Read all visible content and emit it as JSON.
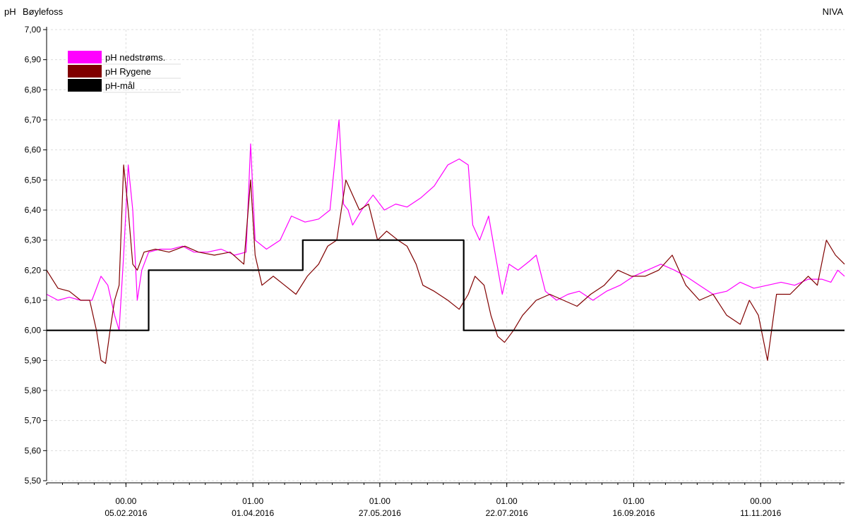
{
  "header": {
    "unit": "pH",
    "station": "Bøylefoss",
    "source": "NIVA"
  },
  "chart_data": {
    "type": "line",
    "ylim": [
      5.5,
      7.0
    ],
    "y_ticks": [
      "7,00",
      "6,90",
      "6,80",
      "6,70",
      "6,60",
      "6,50",
      "6,40",
      "6,30",
      "6,20",
      "6,10",
      "6,00",
      "5,90",
      "5,80",
      "5,70",
      "5,60",
      "5,50"
    ],
    "xlim": [
      "2016-01-01",
      "2016-12-18"
    ],
    "x_ticks": [
      {
        "date": "2016-02-05",
        "time": "00.00",
        "label": "05.02.2016"
      },
      {
        "date": "2016-04-01",
        "time": "01.00",
        "label": "01.04.2016"
      },
      {
        "date": "2016-05-27",
        "time": "01.00",
        "label": "27.05.2016"
      },
      {
        "date": "2016-07-22",
        "time": "01.00",
        "label": "22.07.2016"
      },
      {
        "date": "2016-09-16",
        "time": "01.00",
        "label": "16.09.2016"
      },
      {
        "date": "2016-11-11",
        "time": "00.00",
        "label": "11.11.2016"
      }
    ],
    "grid": true,
    "legend_position": "top-left",
    "series": [
      {
        "name": "pH nedstrøms.",
        "color": "#ff00ff",
        "points": [
          [
            "2016-01-01",
            6.12
          ],
          [
            "2016-01-06",
            6.1
          ],
          [
            "2016-01-11",
            6.11
          ],
          [
            "2016-01-16",
            6.1
          ],
          [
            "2016-01-21",
            6.1
          ],
          [
            "2016-01-25",
            6.18
          ],
          [
            "2016-01-28",
            6.15
          ],
          [
            "2016-01-31",
            6.05
          ],
          [
            "2016-02-02",
            6.0
          ],
          [
            "2016-02-04",
            6.25
          ],
          [
            "2016-02-06",
            6.55
          ],
          [
            "2016-02-08",
            6.4
          ],
          [
            "2016-02-10",
            6.1
          ],
          [
            "2016-02-12",
            6.2
          ],
          [
            "2016-02-15",
            6.26
          ],
          [
            "2016-02-20",
            6.27
          ],
          [
            "2016-02-25",
            6.27
          ],
          [
            "2016-03-01",
            6.28
          ],
          [
            "2016-03-06",
            6.26
          ],
          [
            "2016-03-12",
            6.26
          ],
          [
            "2016-03-18",
            6.27
          ],
          [
            "2016-03-24",
            6.25
          ],
          [
            "2016-03-29",
            6.26
          ],
          [
            "2016-03-31",
            6.62
          ],
          [
            "2016-04-02",
            6.3
          ],
          [
            "2016-04-07",
            6.27
          ],
          [
            "2016-04-13",
            6.3
          ],
          [
            "2016-04-18",
            6.38
          ],
          [
            "2016-04-24",
            6.36
          ],
          [
            "2016-04-30",
            6.37
          ],
          [
            "2016-05-05",
            6.4
          ],
          [
            "2016-05-09",
            6.7
          ],
          [
            "2016-05-11",
            6.42
          ],
          [
            "2016-05-13",
            6.4
          ],
          [
            "2016-05-15",
            6.35
          ],
          [
            "2016-05-19",
            6.4
          ],
          [
            "2016-05-24",
            6.45
          ],
          [
            "2016-05-29",
            6.4
          ],
          [
            "2016-06-03",
            6.42
          ],
          [
            "2016-06-08",
            6.41
          ],
          [
            "2016-06-14",
            6.44
          ],
          [
            "2016-06-20",
            6.48
          ],
          [
            "2016-06-26",
            6.55
          ],
          [
            "2016-07-01",
            6.57
          ],
          [
            "2016-07-05",
            6.55
          ],
          [
            "2016-07-07",
            6.35
          ],
          [
            "2016-07-10",
            6.3
          ],
          [
            "2016-07-14",
            6.38
          ],
          [
            "2016-07-17",
            6.25
          ],
          [
            "2016-07-20",
            6.12
          ],
          [
            "2016-07-23",
            6.22
          ],
          [
            "2016-07-27",
            6.2
          ],
          [
            "2016-08-01",
            6.23
          ],
          [
            "2016-08-04",
            6.25
          ],
          [
            "2016-08-08",
            6.13
          ],
          [
            "2016-08-13",
            6.1
          ],
          [
            "2016-08-18",
            6.12
          ],
          [
            "2016-08-23",
            6.13
          ],
          [
            "2016-08-29",
            6.1
          ],
          [
            "2016-09-04",
            6.13
          ],
          [
            "2016-09-10",
            6.15
          ],
          [
            "2016-09-16",
            6.18
          ],
          [
            "2016-09-22",
            6.2
          ],
          [
            "2016-09-28",
            6.22
          ],
          [
            "2016-10-04",
            6.2
          ],
          [
            "2016-10-09",
            6.18
          ],
          [
            "2016-10-15",
            6.15
          ],
          [
            "2016-10-21",
            6.12
          ],
          [
            "2016-10-27",
            6.13
          ],
          [
            "2016-11-02",
            6.16
          ],
          [
            "2016-11-08",
            6.14
          ],
          [
            "2016-11-14",
            6.15
          ],
          [
            "2016-11-20",
            6.16
          ],
          [
            "2016-11-26",
            6.15
          ],
          [
            "2016-12-02",
            6.17
          ],
          [
            "2016-12-08",
            6.17
          ],
          [
            "2016-12-12",
            6.16
          ],
          [
            "2016-12-15",
            6.2
          ],
          [
            "2016-12-18",
            6.18
          ]
        ]
      },
      {
        "name": "pH Rygene",
        "color": "#800000",
        "points": [
          [
            "2016-01-01",
            6.2
          ],
          [
            "2016-01-06",
            6.14
          ],
          [
            "2016-01-11",
            6.13
          ],
          [
            "2016-01-16",
            6.1
          ],
          [
            "2016-01-20",
            6.1
          ],
          [
            "2016-01-23",
            6.0
          ],
          [
            "2016-01-25",
            5.9
          ],
          [
            "2016-01-27",
            5.89
          ],
          [
            "2016-01-29",
            6.0
          ],
          [
            "2016-01-31",
            6.1
          ],
          [
            "2016-02-02",
            6.15
          ],
          [
            "2016-02-04",
            6.55
          ],
          [
            "2016-02-06",
            6.4
          ],
          [
            "2016-02-08",
            6.22
          ],
          [
            "2016-02-10",
            6.2
          ],
          [
            "2016-02-13",
            6.26
          ],
          [
            "2016-02-18",
            6.27
          ],
          [
            "2016-02-24",
            6.26
          ],
          [
            "2016-03-02",
            6.28
          ],
          [
            "2016-03-08",
            6.26
          ],
          [
            "2016-03-15",
            6.25
          ],
          [
            "2016-03-22",
            6.26
          ],
          [
            "2016-03-28",
            6.22
          ],
          [
            "2016-03-31",
            6.5
          ],
          [
            "2016-04-02",
            6.25
          ],
          [
            "2016-04-05",
            6.15
          ],
          [
            "2016-04-10",
            6.18
          ],
          [
            "2016-04-15",
            6.15
          ],
          [
            "2016-04-20",
            6.12
          ],
          [
            "2016-04-25",
            6.18
          ],
          [
            "2016-04-30",
            6.22
          ],
          [
            "2016-05-04",
            6.28
          ],
          [
            "2016-05-08",
            6.3
          ],
          [
            "2016-05-12",
            6.5
          ],
          [
            "2016-05-15",
            6.45
          ],
          [
            "2016-05-18",
            6.4
          ],
          [
            "2016-05-22",
            6.42
          ],
          [
            "2016-05-26",
            6.3
          ],
          [
            "2016-05-30",
            6.33
          ],
          [
            "2016-06-04",
            6.3
          ],
          [
            "2016-06-08",
            6.28
          ],
          [
            "2016-06-12",
            6.22
          ],
          [
            "2016-06-15",
            6.15
          ],
          [
            "2016-06-20",
            6.13
          ],
          [
            "2016-06-26",
            6.1
          ],
          [
            "2016-07-01",
            6.07
          ],
          [
            "2016-07-05",
            6.12
          ],
          [
            "2016-07-08",
            6.18
          ],
          [
            "2016-07-12",
            6.15
          ],
          [
            "2016-07-15",
            6.05
          ],
          [
            "2016-07-18",
            5.98
          ],
          [
            "2016-07-21",
            5.96
          ],
          [
            "2016-07-25",
            6.0
          ],
          [
            "2016-07-29",
            6.05
          ],
          [
            "2016-08-04",
            6.1
          ],
          [
            "2016-08-10",
            6.12
          ],
          [
            "2016-08-16",
            6.1
          ],
          [
            "2016-08-22",
            6.08
          ],
          [
            "2016-08-28",
            6.12
          ],
          [
            "2016-09-03",
            6.15
          ],
          [
            "2016-09-09",
            6.2
          ],
          [
            "2016-09-15",
            6.18
          ],
          [
            "2016-09-21",
            6.18
          ],
          [
            "2016-09-27",
            6.2
          ],
          [
            "2016-10-03",
            6.25
          ],
          [
            "2016-10-09",
            6.15
          ],
          [
            "2016-10-15",
            6.1
          ],
          [
            "2016-10-21",
            6.12
          ],
          [
            "2016-10-27",
            6.05
          ],
          [
            "2016-11-02",
            6.02
          ],
          [
            "2016-11-06",
            6.1
          ],
          [
            "2016-11-10",
            6.05
          ],
          [
            "2016-11-14",
            5.9
          ],
          [
            "2016-11-18",
            6.12
          ],
          [
            "2016-11-24",
            6.12
          ],
          [
            "2016-11-28",
            6.15
          ],
          [
            "2016-12-02",
            6.18
          ],
          [
            "2016-12-06",
            6.15
          ],
          [
            "2016-12-10",
            6.3
          ],
          [
            "2016-12-14",
            6.25
          ],
          [
            "2016-12-18",
            6.22
          ]
        ]
      },
      {
        "name": "pH-mål",
        "color": "#000000",
        "step": true,
        "points": [
          [
            "2016-01-01",
            6.0
          ],
          [
            "2016-02-15",
            6.2
          ],
          [
            "2016-04-23",
            6.3
          ],
          [
            "2016-07-03",
            6.0
          ],
          [
            "2016-12-18",
            6.0
          ]
        ]
      }
    ]
  }
}
